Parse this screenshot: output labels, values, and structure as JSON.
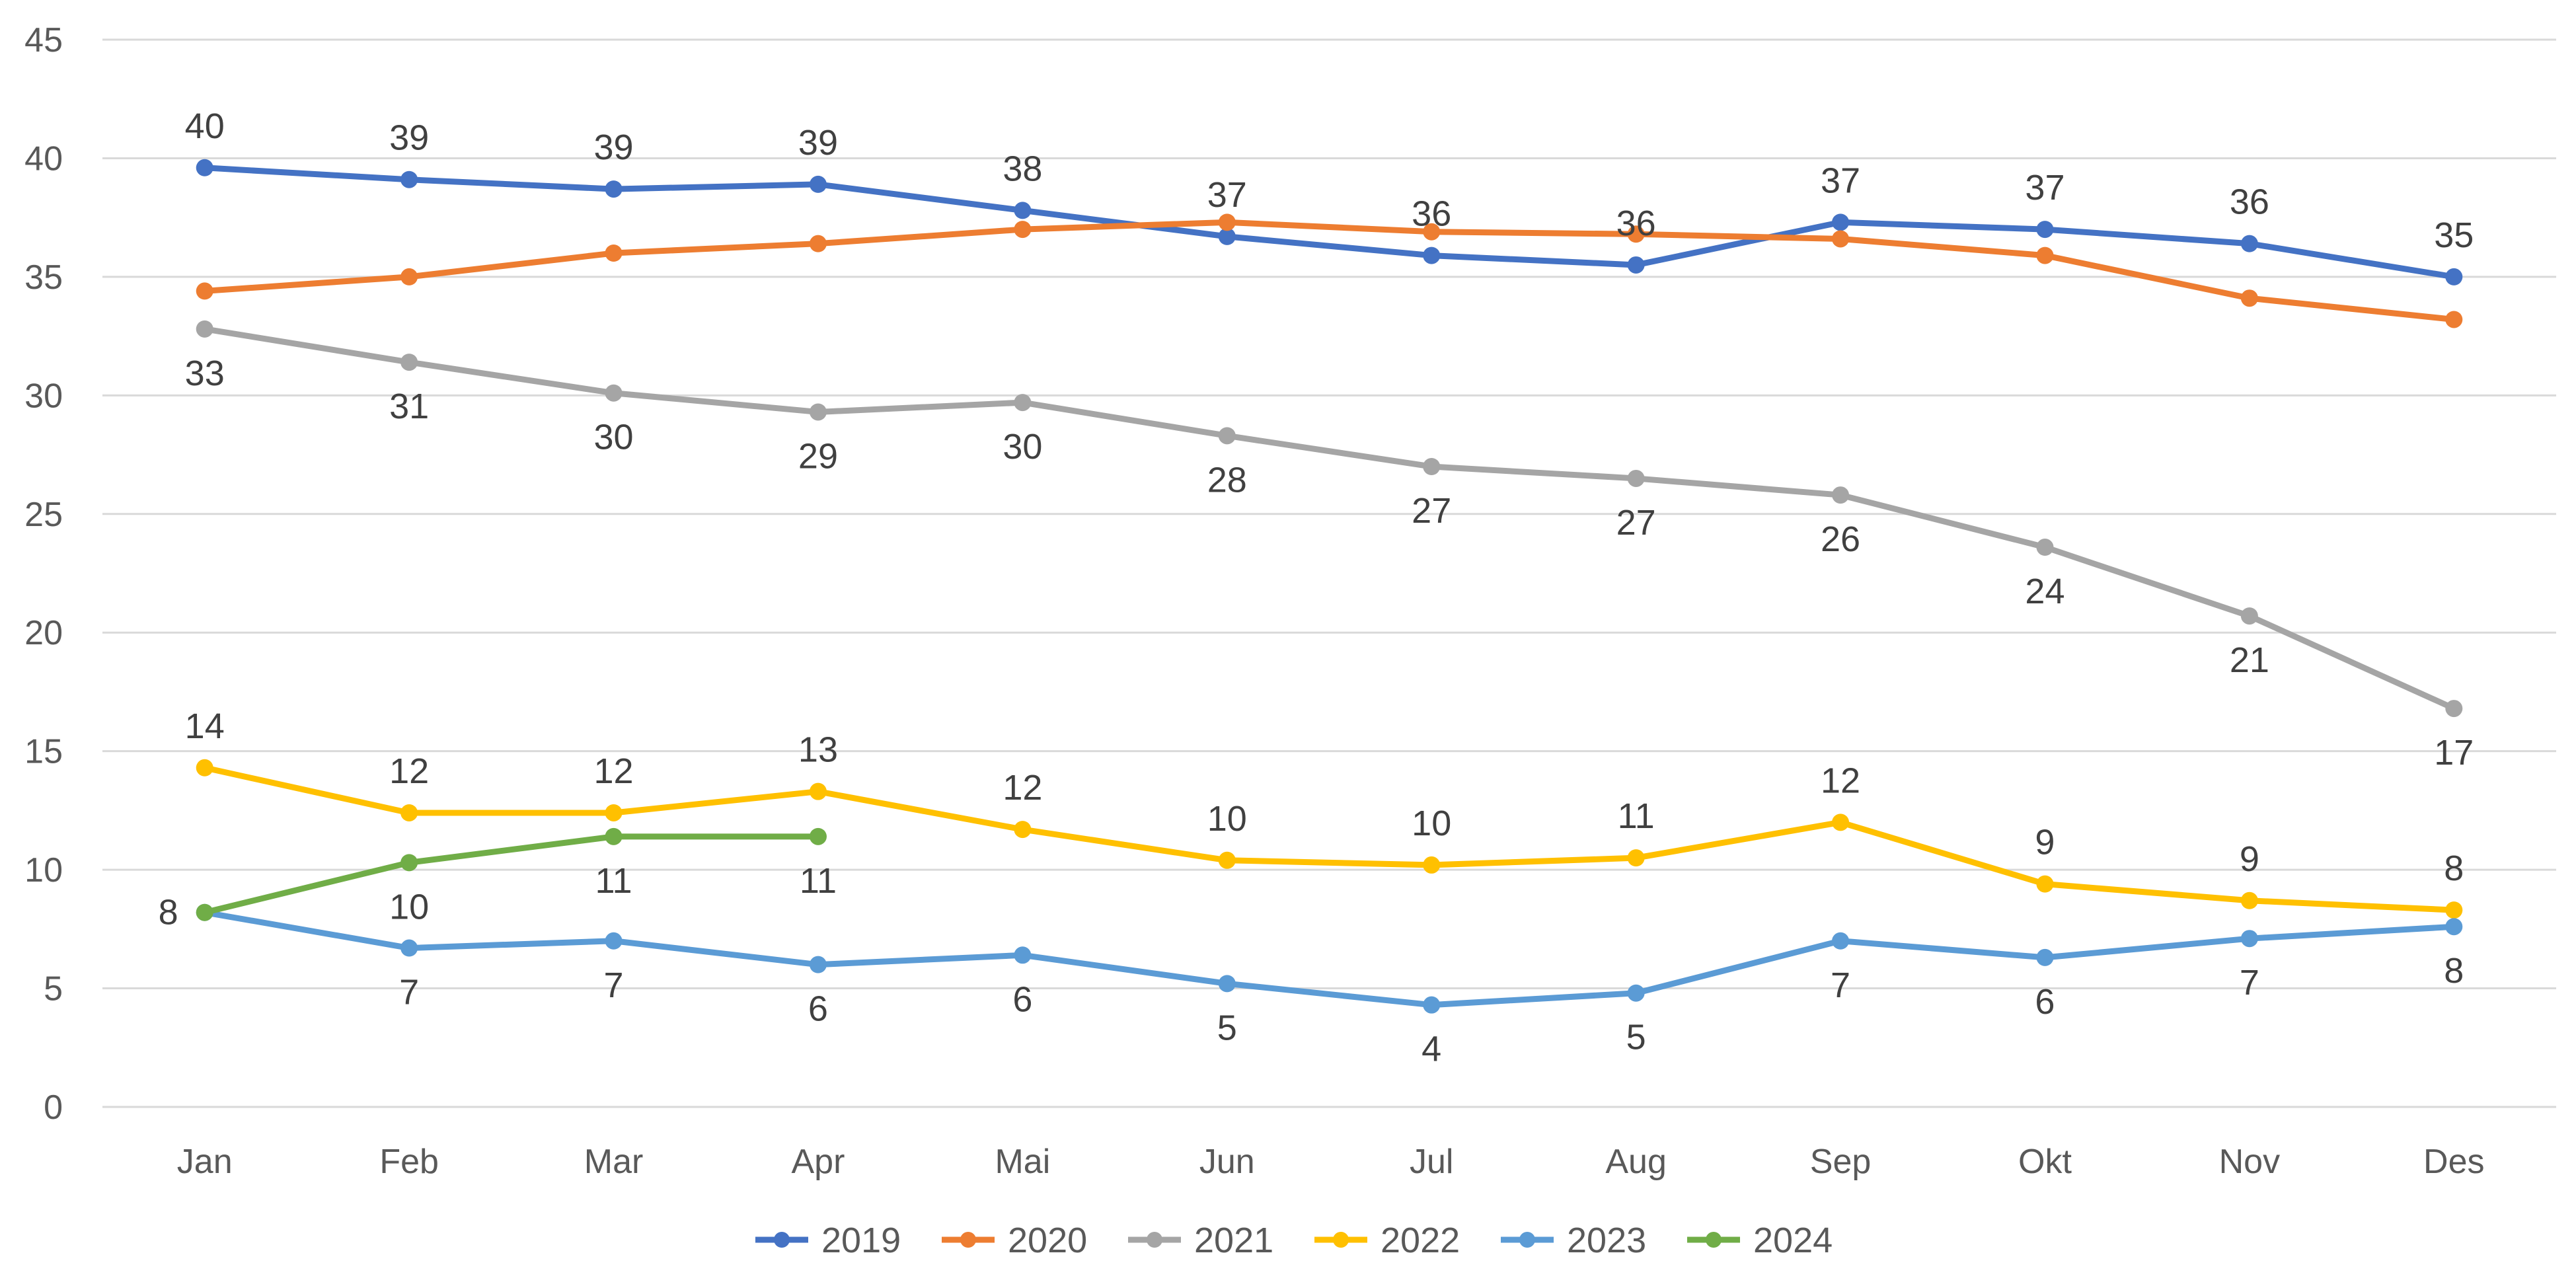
{
  "chart_data": {
    "type": "line",
    "title": "",
    "xlabel": "",
    "ylabel": "",
    "categories": [
      "Jan",
      "Feb",
      "Mar",
      "Apr",
      "Mai",
      "Jun",
      "Jul",
      "Aug",
      "Sep",
      "Okt",
      "Nov",
      "Des"
    ],
    "ylim": [
      0,
      45
    ],
    "yticks": [
      0,
      5,
      10,
      15,
      20,
      25,
      30,
      35,
      40,
      45
    ],
    "grid": true,
    "legend_position": "bottom",
    "series": [
      {
        "name": "2019",
        "color": "#4472c4",
        "values": [
          39.6,
          39.1,
          38.7,
          38.9,
          37.8,
          36.7,
          35.9,
          35.5,
          37.3,
          37.0,
          36.4,
          35.0
        ],
        "labels": [
          "40",
          "39",
          "39",
          "39",
          "38",
          "37",
          "36",
          "36",
          "37",
          "37",
          "36",
          "35"
        ],
        "label_position": "above"
      },
      {
        "name": "2020",
        "color": "#ed7d31",
        "values": [
          34.4,
          35.0,
          36.0,
          36.4,
          37.0,
          37.3,
          36.9,
          36.8,
          36.6,
          35.9,
          34.1,
          33.2
        ],
        "labels": [],
        "label_position": "none"
      },
      {
        "name": "2021",
        "color": "#a5a5a5",
        "values": [
          32.8,
          31.4,
          30.1,
          29.3,
          29.7,
          28.3,
          27.0,
          26.5,
          25.8,
          23.6,
          20.7,
          16.8
        ],
        "labels": [
          "33",
          "31",
          "30",
          "29",
          "30",
          "28",
          "27",
          "27",
          "26",
          "24",
          "21",
          "17"
        ],
        "label_position": "below"
      },
      {
        "name": "2022",
        "color": "#ffc000",
        "values": [
          14.3,
          12.4,
          12.4,
          13.3,
          11.7,
          10.4,
          10.2,
          10.5,
          12.0,
          9.4,
          8.7,
          8.3
        ],
        "labels": [
          "14",
          "12",
          "12",
          "13",
          "12",
          "10",
          "10",
          "11",
          "12",
          "9",
          "9",
          "8"
        ],
        "label_position": "above"
      },
      {
        "name": "2023",
        "color": "#5b9bd5",
        "values": [
          8.2,
          6.7,
          7.0,
          6.0,
          6.4,
          5.2,
          4.3,
          4.8,
          7.0,
          6.3,
          7.1,
          7.6
        ],
        "labels": [
          "",
          "7",
          "7",
          "6",
          "6",
          "5",
          "4",
          "5",
          "7",
          "6",
          "7",
          "8"
        ],
        "label_position": "below"
      },
      {
        "name": "2024",
        "color": "#70ad47",
        "values": [
          8.2,
          10.3,
          11.4,
          11.4,
          null,
          null,
          null,
          null,
          null,
          null,
          null,
          null
        ],
        "labels": [
          "8",
          "10",
          "11",
          "11"
        ],
        "label_position": "below",
        "first_label_position": "left"
      }
    ]
  }
}
